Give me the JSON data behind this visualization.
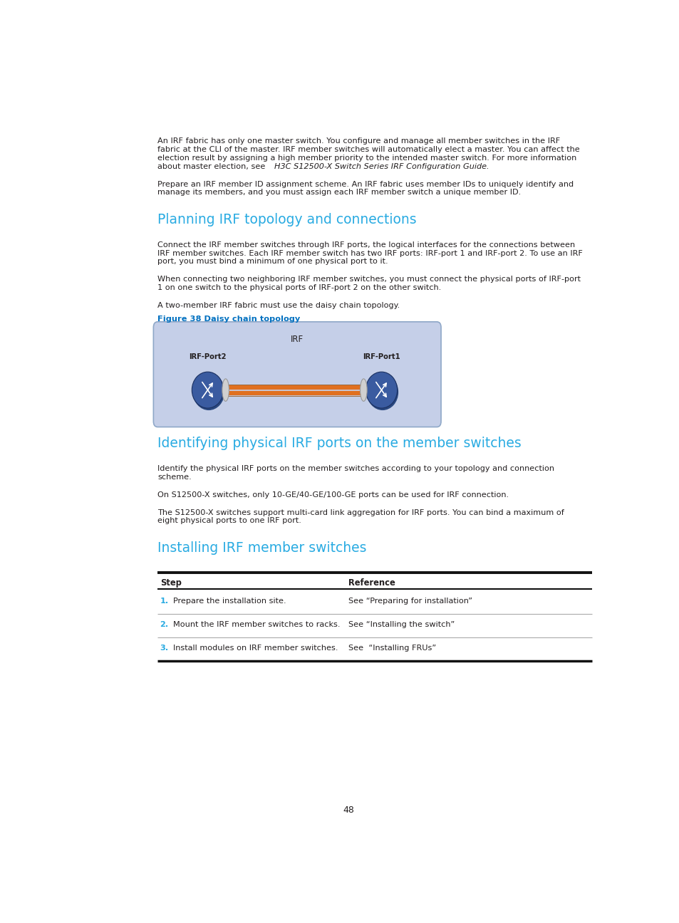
{
  "bg_color": "#ffffff",
  "cyan_color": "#29ABE2",
  "text_color": "#231F20",
  "figure_caption_color": "#0070C0",
  "page_number": "48",
  "para1_normal": "An IRF fabric has only one master switch. You configure and manage all member switches in the IRF fabric at the CLI of the master. IRF member switches will automatically elect a master. You can affect the election result by assigning a high member priority to the intended master switch. For more information about master election, see ",
  "para1_italic": "H3C S12500-X Switch Series IRF Configuration Guide",
  "para1_end": ".",
  "para2": "Prepare an IRF member ID assignment scheme. An IRF fabric uses member IDs to uniquely identify and manage its members, and you must assign each IRF member switch a unique member ID.",
  "section1_title": "Planning IRF topology and connections",
  "s1p1_l1": "Connect the IRF member switches through IRF ports, the logical interfaces for the connections between",
  "s1p1_l2": "IRF member switches. Each IRF member switch has two IRF ports: IRF-port 1 and IRF-port 2. To use an IRF",
  "s1p1_l3": "port, you must bind a minimum of one physical port to it.",
  "s1p2_l1": "When connecting two neighboring IRF member switches, you must connect the physical ports of IRF-port",
  "s1p2_l2": "1 on one switch to the physical ports of IRF-port 2 on the other switch.",
  "s1p3": "A two-member IRF fabric must use the daisy chain topology.",
  "figure_caption": "Figure 38 Daisy chain topology",
  "irf_label": "IRF",
  "irf_port2_label": "IRF-Port2",
  "irf_port1_label": "IRF-Port1",
  "section2_title": "Identifying physical IRF ports on the member switches",
  "s2p1_l1": "Identify the physical IRF ports on the member switches according to your topology and connection",
  "s2p1_l2": "scheme.",
  "s2p2": "On S12500-X switches, only 10-GE/40-GE/100-GE ports can be used for IRF connection.",
  "s2p3_l1": "The S12500-X switches support multi-card link aggregation for IRF ports. You can bind a maximum of",
  "s2p3_l2": "eight physical ports to one IRF port.",
  "section3_title": "Installing IRF member switches",
  "table_col1_header": "Step",
  "table_col2_header": "Reference",
  "table_rows": [
    [
      "1.",
      "Prepare the installation site.",
      "See “Preparing for installation”"
    ],
    [
      "2.",
      "Mount the IRF member switches to racks.",
      "See “Installing the switch”"
    ],
    [
      "3.",
      "Install modules on IRF member switches.",
      "See  “Installing FRUs”"
    ]
  ],
  "diagram_bg": "#C5CFE8",
  "diagram_border": "#8FA8C8",
  "switch_body_color": "#3A5BA0",
  "switch_shadow_color": "#2A4880",
  "connector_face": "#D0D0D0",
  "connector_edge": "#999999",
  "cable_color": "#E07020",
  "cable_color2": "#C05010"
}
